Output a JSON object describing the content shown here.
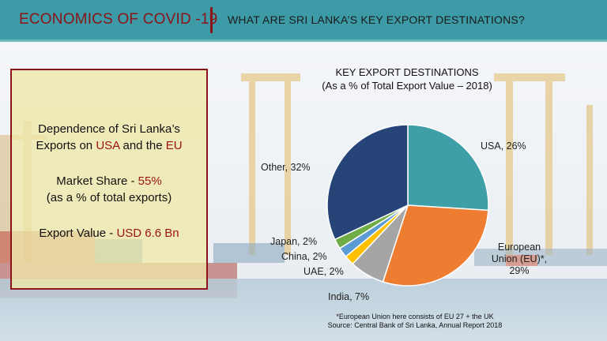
{
  "header": {
    "left_title": "ECONOMICS OF COVID -19",
    "right_title": "WHAT ARE SRI LANKA’S KEY EXPORT DESTINATIONS?"
  },
  "info_box": {
    "line1": "Dependence of Sri Lanka’s",
    "line2_prefix": "Exports on ",
    "line2_usa": "USA",
    "line2_mid": " and the ",
    "line2_eu": "EU",
    "market_share_label": "Market Share - ",
    "market_share_value": "55%",
    "market_share_note": "(as a % of total exports)",
    "export_value_label": "Export Value - ",
    "export_value_value": "USD 6.6 Bn"
  },
  "chart_data": {
    "type": "pie",
    "title": "KEY EXPORT DESTINATIONS",
    "subtitle": "(As a % of Total Export Value – 2018)",
    "slices": [
      {
        "label": "USA, 26%",
        "name": "USA",
        "value": 26,
        "color": "#3f9fa8"
      },
      {
        "label": "European Union (EU)*, 29%",
        "name": "European Union (EU)*",
        "value": 29,
        "color": "#ee7d31"
      },
      {
        "label": "India, 7%",
        "name": "India",
        "value": 7,
        "color": "#a5a5a5"
      },
      {
        "label": "UAE, 2%",
        "name": "UAE",
        "value": 2,
        "color": "#ffc000"
      },
      {
        "label": "China, 2%",
        "name": "China",
        "value": 2,
        "color": "#5b9bd5"
      },
      {
        "label": "Japan, 2%",
        "name": "Japan",
        "value": 2,
        "color": "#70ad47"
      },
      {
        "label": "Other, 32%",
        "name": "Other",
        "value": 32,
        "color": "#264478"
      }
    ],
    "footnote1": "*European Union here consists of EU 27 + the UK",
    "footnote2": "Source: Central Bank of Sri Lanka, Annual Report 2018"
  },
  "labels": {
    "usa": "USA, 26%",
    "eu_line1": "European",
    "eu_line2": "Union (EU)*,",
    "eu_line3": "29%",
    "india": "India, 7%",
    "uae": "UAE, 2%",
    "china": "China, 2%",
    "japan": "Japan, 2%",
    "other": "Other, 32%"
  }
}
